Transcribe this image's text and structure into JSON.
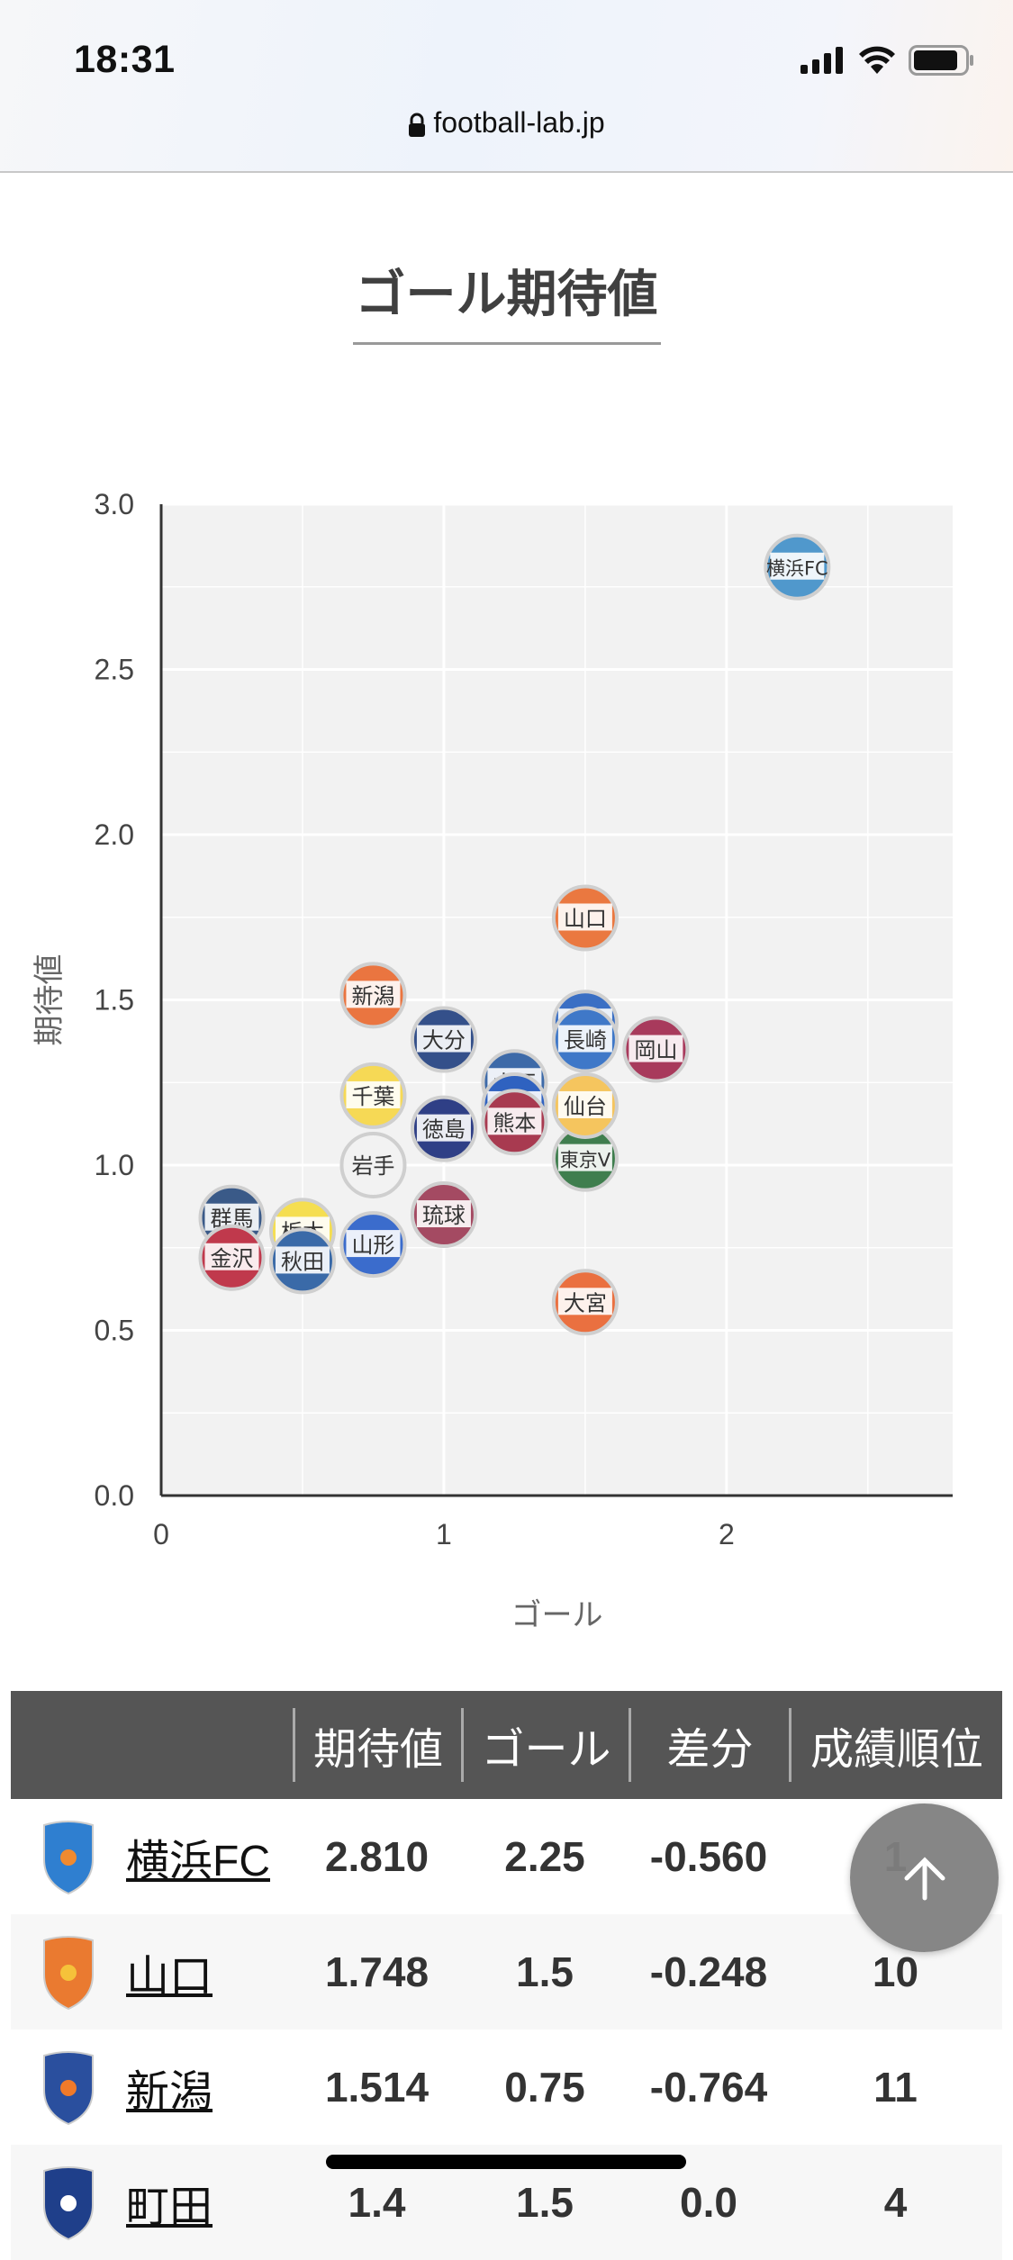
{
  "status_bar": {
    "time": "18:31",
    "url": "football-lab.jp",
    "icons": [
      "signal-icon",
      "wifi-icon",
      "battery-icon"
    ]
  },
  "page": {
    "title": "ゴール期待値"
  },
  "chart_data": {
    "type": "scatter",
    "title": "",
    "xlabel": "ゴール",
    "ylabel": "期待値",
    "xlim": [
      0,
      2.8
    ],
    "ylim": [
      0,
      3.0
    ],
    "x_ticks": [
      "0",
      "1",
      "2"
    ],
    "x_tick_values": [
      0,
      1,
      2
    ],
    "y_ticks": [
      "0.0",
      "0.5",
      "1.0",
      "1.5",
      "2.0",
      "2.5",
      "3.0"
    ],
    "y_tick_values": [
      0,
      0.5,
      1.0,
      1.5,
      2.0,
      2.5,
      3.0
    ],
    "grid": true,
    "points": [
      {
        "label": "群馬",
        "x": 0.25,
        "y": 0.84,
        "color": "#3a5a88"
      },
      {
        "label": "栃木",
        "x": 0.5,
        "y": 0.8,
        "color": "#f5de50"
      },
      {
        "label": "金沢",
        "x": 0.25,
        "y": 0.72,
        "color": "#c0394c"
      },
      {
        "label": "秋田",
        "x": 0.5,
        "y": 0.71,
        "color": "#3a6aa8"
      },
      {
        "label": "山形",
        "x": 0.75,
        "y": 0.76,
        "color": "#3b6ccc"
      },
      {
        "label": "岩手",
        "x": 0.75,
        "y": 1.0,
        "color": "#f2f2f2"
      },
      {
        "label": "千葉",
        "x": 0.75,
        "y": 1.21,
        "color": "#f6d955"
      },
      {
        "label": "新潟",
        "x": 0.75,
        "y": 1.514,
        "color": "#ea7540"
      },
      {
        "label": "琉球",
        "x": 1.0,
        "y": 0.85,
        "color": "#a44a62"
      },
      {
        "label": "徳島",
        "x": 1.0,
        "y": 1.11,
        "color": "#2f3f86"
      },
      {
        "label": "大分",
        "x": 1.0,
        "y": 1.38,
        "color": "#34508a"
      },
      {
        "label": "水戸",
        "x": 1.25,
        "y": 1.25,
        "color": "#3d6aa8"
      },
      {
        "label": "甲府",
        "x": 1.25,
        "y": 1.18,
        "color": "#2f62c0"
      },
      {
        "label": "熊本",
        "x": 1.25,
        "y": 1.13,
        "color": "#a83a50"
      },
      {
        "label": "大宮",
        "x": 1.5,
        "y": 0.585,
        "color": "#ea7040"
      },
      {
        "label": "東京V",
        "x": 1.5,
        "y": 1.02,
        "color": "#3f7e4e"
      },
      {
        "label": "仙台",
        "x": 1.5,
        "y": 1.18,
        "color": "#f5c55e"
      },
      {
        "label": "町田",
        "x": 1.5,
        "y": 1.43,
        "color": "#3a6fc4"
      },
      {
        "label": "長崎",
        "x": 1.5,
        "y": 1.38,
        "color": "#3f78c8"
      },
      {
        "label": "山口",
        "x": 1.5,
        "y": 1.748,
        "color": "#ea7840"
      },
      {
        "label": "岡山",
        "x": 1.75,
        "y": 1.35,
        "color": "#a83a5c"
      },
      {
        "label": "横浜FC",
        "x": 2.25,
        "y": 2.81,
        "color": "#5098cc"
      }
    ]
  },
  "table": {
    "headers": [
      "",
      "期待値",
      "ゴール",
      "差分",
      "成績順位"
    ],
    "rows": [
      {
        "team": "横浜FC",
        "xg": "2.810",
        "goals": "2.25",
        "diff": "-0.560",
        "rank": "1",
        "logo_color": "#2f7fd0",
        "logo_accent": "#f08a30"
      },
      {
        "team": "山口",
        "xg": "1.748",
        "goals": "1.5",
        "diff": "-0.248",
        "rank": "10",
        "logo_color": "#ea7a30",
        "logo_accent": "#f5c23a"
      },
      {
        "team": "新潟",
        "xg": "1.514",
        "goals": "0.75",
        "diff": "-0.764",
        "rank": "11",
        "logo_color": "#2a4f9e",
        "logo_accent": "#f07a2a"
      },
      {
        "team": "町田",
        "xg": "1.4",
        "goals": "1.5",
        "diff": "0.0",
        "rank": "4",
        "logo_color": "#1f3f8a",
        "logo_accent": "#ffffff"
      }
    ]
  },
  "fab": {
    "icon": "arrow-up-icon"
  }
}
